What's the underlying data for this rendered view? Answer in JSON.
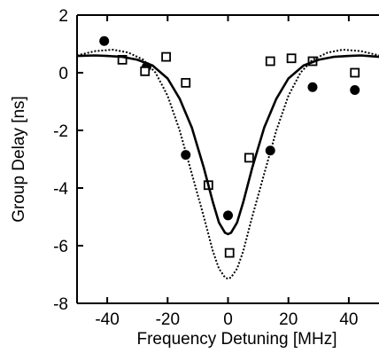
{
  "chart_data": {
    "type": "scatter",
    "title": "",
    "xlabel": "Frequency Detuning [MHz]",
    "ylabel": "Group Delay [ns]",
    "xlim": [
      -50,
      50
    ],
    "ylim": [
      -8,
      2
    ],
    "xticks": [
      -40,
      -20,
      0,
      20,
      40
    ],
    "yticks": [
      2,
      0,
      -2,
      -4,
      -6,
      -8
    ],
    "grid": false,
    "legend": "none",
    "series": [
      {
        "marker": "filled-circle",
        "color": "#000000",
        "points": [
          [
            -41,
            1.1
          ],
          [
            -27,
            0.2
          ],
          [
            -14,
            -2.85
          ],
          [
            0,
            -4.95
          ],
          [
            14,
            -2.7
          ],
          [
            28,
            -0.5
          ],
          [
            42,
            -0.6
          ]
        ]
      },
      {
        "marker": "open-square",
        "color": "#000000",
        "points": [
          [
            -35,
            0.45
          ],
          [
            -27.5,
            0.05
          ],
          [
            -20.5,
            0.55
          ],
          [
            -14,
            -0.35
          ],
          [
            -6.5,
            -3.9
          ],
          [
            0.5,
            -6.25
          ],
          [
            7,
            -2.95
          ],
          [
            14,
            0.4
          ],
          [
            21,
            0.5
          ],
          [
            28,
            0.4
          ],
          [
            42,
            0.0
          ]
        ]
      },
      {
        "line": "solid",
        "color": "#000000",
        "points": [
          [
            -50,
            0.58
          ],
          [
            -44,
            0.6
          ],
          [
            -40,
            0.58
          ],
          [
            -35,
            0.55
          ],
          [
            -30,
            0.45
          ],
          [
            -25,
            0.25
          ],
          [
            -20,
            -0.2
          ],
          [
            -16,
            -0.9
          ],
          [
            -12,
            -1.9
          ],
          [
            -8,
            -3.3
          ],
          [
            -5,
            -4.5
          ],
          [
            -3,
            -5.2
          ],
          [
            -1,
            -5.55
          ],
          [
            0,
            -5.6
          ],
          [
            1,
            -5.55
          ],
          [
            3,
            -5.2
          ],
          [
            5,
            -4.5
          ],
          [
            8,
            -3.3
          ],
          [
            12,
            -1.9
          ],
          [
            16,
            -0.9
          ],
          [
            20,
            -0.2
          ],
          [
            25,
            0.25
          ],
          [
            30,
            0.45
          ],
          [
            35,
            0.55
          ],
          [
            40,
            0.58
          ],
          [
            44,
            0.6
          ],
          [
            50,
            0.55
          ]
        ]
      },
      {
        "line": "dotted",
        "color": "#000000",
        "points": [
          [
            -50,
            0.6
          ],
          [
            -44,
            0.75
          ],
          [
            -38,
            0.8
          ],
          [
            -33,
            0.7
          ],
          [
            -28,
            0.45
          ],
          [
            -24,
            0.0
          ],
          [
            -20,
            -0.8
          ],
          [
            -16,
            -2.0
          ],
          [
            -12,
            -3.5
          ],
          [
            -8,
            -5.0
          ],
          [
            -5,
            -6.2
          ],
          [
            -3,
            -6.8
          ],
          [
            -1,
            -7.1
          ],
          [
            0,
            -7.15
          ],
          [
            1,
            -7.1
          ],
          [
            3,
            -6.8
          ],
          [
            5,
            -6.2
          ],
          [
            8,
            -5.0
          ],
          [
            12,
            -3.5
          ],
          [
            16,
            -2.0
          ],
          [
            20,
            -0.8
          ],
          [
            24,
            0.0
          ],
          [
            28,
            0.45
          ],
          [
            33,
            0.7
          ],
          [
            38,
            0.8
          ],
          [
            44,
            0.75
          ],
          [
            50,
            0.6
          ]
        ]
      }
    ]
  }
}
